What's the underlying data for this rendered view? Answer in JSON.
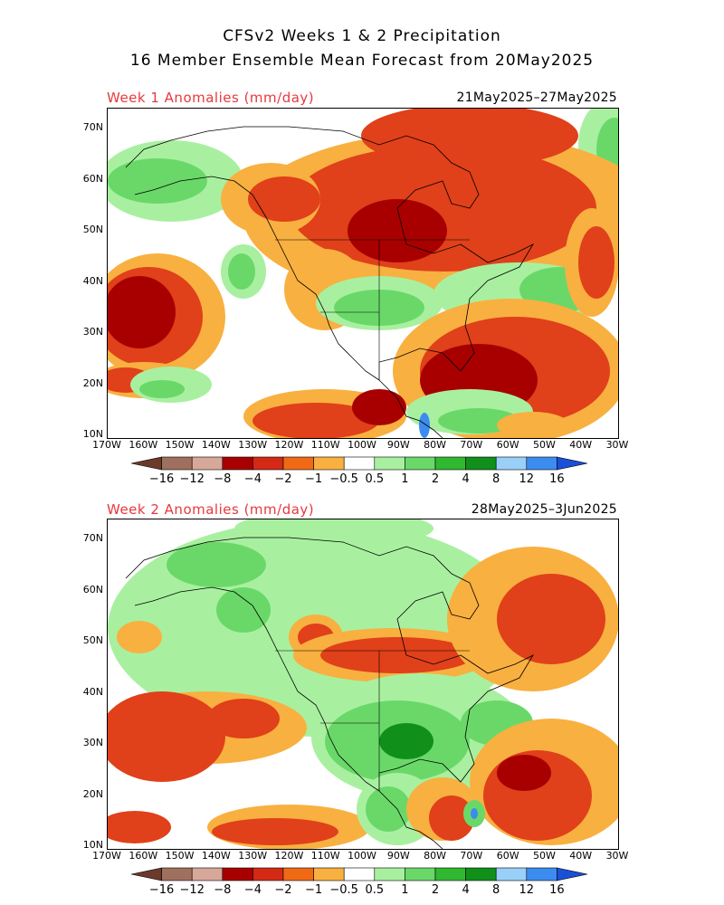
{
  "header": {
    "title_line1": "CFSv2 Weeks 1 & 2 Precipitation",
    "title_line2": "16 Member Ensemble Mean Forecast from 20May2025"
  },
  "panels": [
    {
      "label": "Week 1 Anomalies (mm/day)",
      "dates": "21May2025–27May2025"
    },
    {
      "label": "Week 2 Anomalies (mm/day)",
      "dates": "28May2025–3Jun2025"
    }
  ],
  "axes": {
    "lat_ticks": [
      "70N",
      "60N",
      "50N",
      "40N",
      "30N",
      "20N",
      "10N"
    ],
    "lon_ticks": [
      "170W",
      "160W",
      "150W",
      "140W",
      "130W",
      "120W",
      "110W",
      "100W",
      "90W",
      "80W",
      "70W",
      "60W",
      "50W",
      "40W",
      "30W"
    ]
  },
  "colorbar": {
    "labels": [
      "−16",
      "−12",
      "−8",
      "−4",
      "−2",
      "−1",
      "−0.5",
      "0.5",
      "1",
      "2",
      "4",
      "8",
      "12",
      "16"
    ],
    "colors": [
      "#6b3a2a",
      "#a0705e",
      "#d7a89a",
      "#a80000",
      "#d42a15",
      "#f06a16",
      "#f8b040",
      "#ffffff",
      "#a8f0a0",
      "#6ad868",
      "#30b830",
      "#10901a",
      "#9ad0f8",
      "#3c8cf0",
      "#1a50d8"
    ]
  },
  "colors": {
    "label_red": "#e8383d",
    "dry_dark": "#a80000",
    "dry_mid": "#e0401a",
    "dry_light": "#f8b040",
    "wet_light": "#a8f0a0",
    "wet_mid": "#6ad868",
    "wet_dark": "#10901a",
    "wet_blue": "#3c8cf0"
  }
}
